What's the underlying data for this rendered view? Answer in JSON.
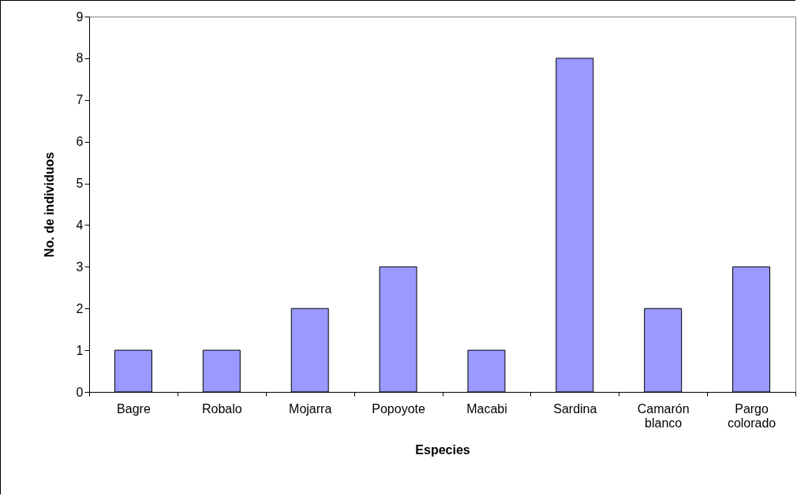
{
  "chart_data": {
    "type": "bar",
    "xlabel": "Especies",
    "ylabel": "No. de individuos",
    "categories": [
      "Bagre",
      "Robalo",
      "Mojarra",
      "Popoyote",
      "Macabi",
      "Sardina",
      "Camarón blanco",
      "Pargo colorado"
    ],
    "values": [
      1,
      1,
      2,
      3,
      1,
      8,
      2,
      3
    ],
    "color": "#9999ff",
    "ylim": [
      0,
      9
    ],
    "yticks": [
      0,
      1,
      2,
      3,
      4,
      5,
      6,
      7,
      8,
      9
    ],
    "grid": false
  }
}
